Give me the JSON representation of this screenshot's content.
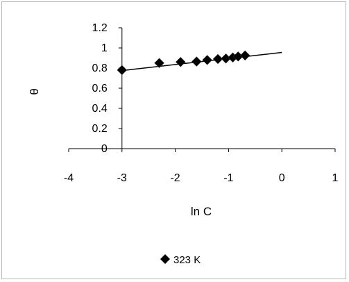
{
  "chart_data": {
    "type": "scatter",
    "title": "",
    "xlabel": "ln C",
    "ylabel": "θ",
    "xlim": [
      -4,
      1
    ],
    "ylim": [
      0,
      1.2
    ],
    "x_ticks": [
      -4,
      -3,
      -2,
      -1,
      0,
      1
    ],
    "y_ticks": [
      0,
      0.2,
      0.4,
      0.6,
      0.8,
      1,
      1.2
    ],
    "x_tick_labels": [
      "-4",
      "-3",
      "-2",
      "-1",
      "0",
      "1"
    ],
    "y_tick_labels": [
      "0",
      "0.2",
      "0.4",
      "0.6",
      "0.8",
      "1",
      "1.2"
    ],
    "grid": false,
    "legend_position": "bottom",
    "series": [
      {
        "name": "323 K",
        "marker": "diamond",
        "color": "#000000",
        "x": [
          -3.0,
          -2.3,
          -1.9,
          -1.6,
          -1.4,
          -1.2,
          -1.05,
          -0.92,
          -0.82,
          -0.69
        ],
        "y": [
          0.78,
          0.85,
          0.86,
          0.865,
          0.88,
          0.89,
          0.895,
          0.905,
          0.915,
          0.925
        ]
      }
    ],
    "trendline": {
      "type": "linear",
      "color": "#000000",
      "x": [
        -3.0,
        0.0
      ],
      "y": [
        0.775,
        0.955
      ]
    }
  }
}
